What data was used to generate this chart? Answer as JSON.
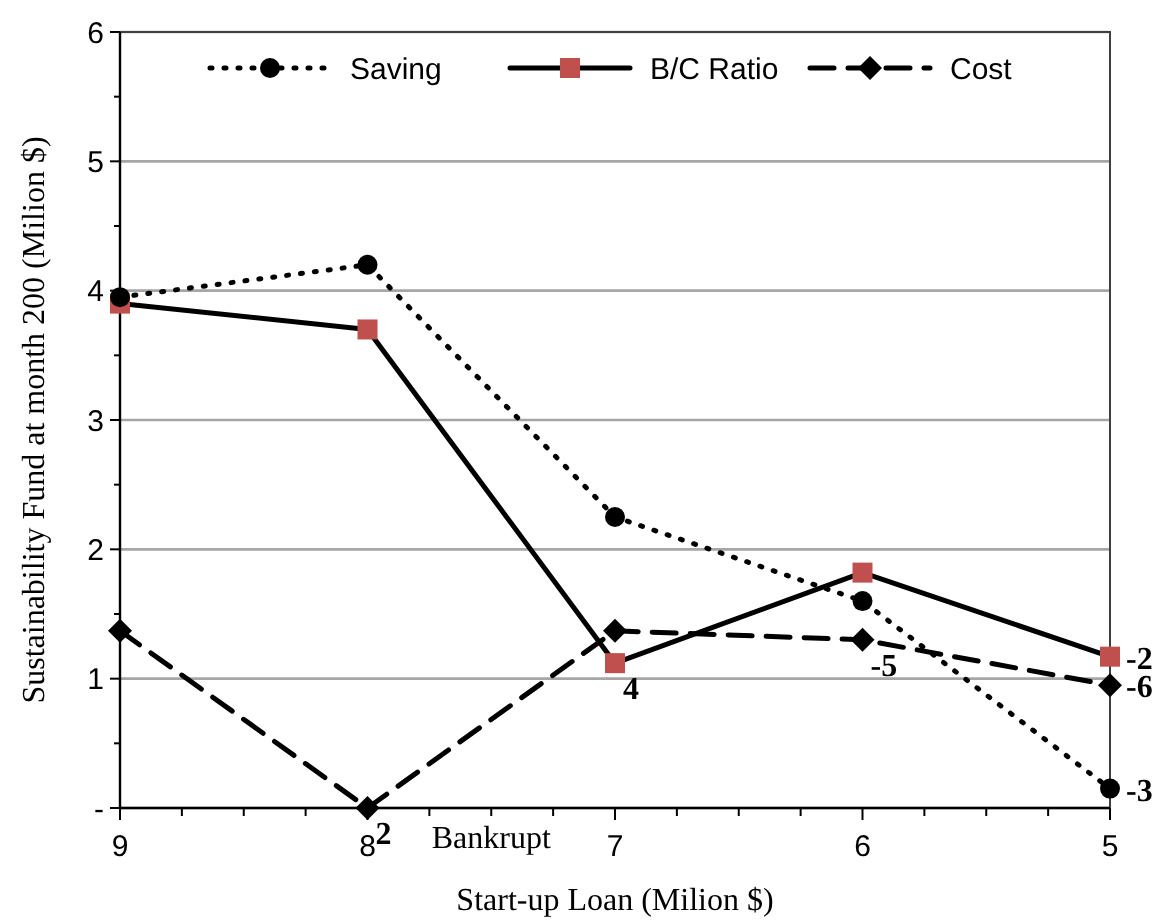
{
  "chart_data": {
    "type": "line",
    "xlabel": "Start-up Loan (Milion $)",
    "ylabel": "Sustainability Fund  at  month 200 (Milion $)",
    "categories": [
      "9",
      "8",
      "7",
      "6",
      "5"
    ],
    "series": [
      {
        "name": "Saving",
        "color": "#000000",
        "marker": "circle",
        "line_style": "dotted",
        "values": [
          3.95,
          4.2,
          2.25,
          1.6,
          0.15
        ]
      },
      {
        "name": "B/C Ratio",
        "color": "#c0504d",
        "marker": "square",
        "line_style": "solid",
        "values": [
          3.9,
          3.7,
          1.12,
          1.82,
          1.17
        ]
      },
      {
        "name": "Cost",
        "color": "#000000",
        "marker": "diamond",
        "line_style": "dashed",
        "values": [
          1.37,
          0,
          1.37,
          1.3,
          0.95
        ]
      }
    ],
    "ylim": [
      0,
      6
    ],
    "yticks": [
      {
        "value": 0,
        "label": "-"
      },
      1,
      2,
      3,
      4,
      5,
      6
    ],
    "grid": "y",
    "legend": "top",
    "annotations": [
      {
        "text": "2",
        "x": "8",
        "y": 0
      },
      "Bankrupt",
      {
        "text": "4",
        "x": "7",
        "y": 1.12
      },
      {
        "text": "-5",
        "x": "6",
        "y": 1.3
      },
      {
        "text": "-2",
        "x": "5",
        "y": 1.17
      },
      {
        "text": "-6",
        "x": "5",
        "y": 0.95
      },
      {
        "text": "-3",
        "x": "5",
        "y": 0.15
      }
    ]
  }
}
